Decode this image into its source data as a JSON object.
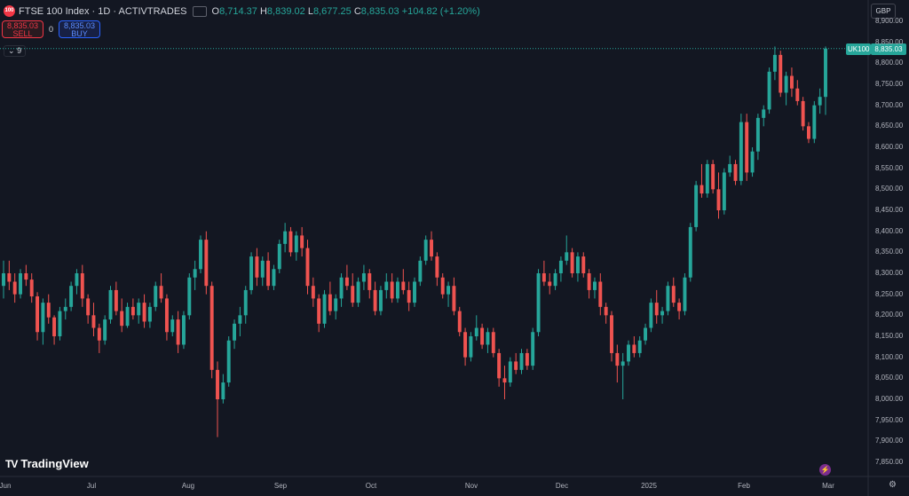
{
  "header": {
    "symbol_icon": "100",
    "title": "FTSE 100 Index · 1D · ACTIVTRADES",
    "ohlc": {
      "o_label": "O",
      "o": "8,714.37",
      "h_label": "H",
      "h": "8,839.02",
      "l_label": "L",
      "l": "8,677.25",
      "c_label": "C",
      "c": "8,835.03",
      "change": "+104.82 (+1.20%)"
    }
  },
  "trade": {
    "sell_price": "8,835.03",
    "sell_label": "SELL",
    "spread": "0",
    "buy_price": "8,835.03",
    "buy_label": "BUY"
  },
  "indicators_toggle": "9",
  "currency": "GBP",
  "symbol_tag": "UK100",
  "last_price": "8,835.03",
  "brand": "TradingView",
  "colors": {
    "up": "#26a69a",
    "down": "#ef5350",
    "bg": "#131722"
  },
  "chart_data": {
    "type": "candlestick",
    "title": "FTSE 100 Index · 1D · ACTIVTRADES",
    "ylim": [
      7825,
      8925
    ],
    "y_ticks": [
      "7,850.00",
      "7,900.00",
      "7,950.00",
      "8,000.00",
      "8,050.00",
      "8,100.00",
      "8,150.00",
      "8,200.00",
      "8,250.00",
      "8,300.00",
      "8,350.00",
      "8,400.00",
      "8,450.00",
      "8,500.00",
      "8,550.00",
      "8,600.00",
      "8,650.00",
      "8,700.00",
      "8,750.00",
      "8,800.00",
      "8,850.00",
      "8,900.00"
    ],
    "x_ticks": [
      "Jun",
      "Jul",
      "Aug",
      "Sep",
      "Oct",
      "Nov",
      "Dec",
      "2025",
      "Feb",
      "Mar"
    ],
    "candles": [
      [
        8270,
        8330,
        8240,
        8300
      ],
      [
        8300,
        8330,
        8260,
        8280
      ],
      [
        8280,
        8300,
        8230,
        8250
      ],
      [
        8250,
        8310,
        8240,
        8300
      ],
      [
        8300,
        8320,
        8270,
        8285
      ],
      [
        8285,
        8300,
        8230,
        8245
      ],
      [
        8245,
        8255,
        8140,
        8160
      ],
      [
        8160,
        8240,
        8130,
        8230
      ],
      [
        8230,
        8250,
        8180,
        8195
      ],
      [
        8195,
        8200,
        8130,
        8150
      ],
      [
        8150,
        8220,
        8140,
        8210
      ],
      [
        8210,
        8240,
        8190,
        8220
      ],
      [
        8220,
        8280,
        8210,
        8270
      ],
      [
        8270,
        8310,
        8250,
        8300
      ],
      [
        8300,
        8320,
        8220,
        8240
      ],
      [
        8240,
        8250,
        8180,
        8200
      ],
      [
        8200,
        8230,
        8150,
        8170
      ],
      [
        8170,
        8180,
        8110,
        8140
      ],
      [
        8140,
        8200,
        8130,
        8190
      ],
      [
        8190,
        8270,
        8180,
        8260
      ],
      [
        8260,
        8280,
        8200,
        8210
      ],
      [
        8210,
        8240,
        8160,
        8175
      ],
      [
        8175,
        8230,
        8170,
        8220
      ],
      [
        8220,
        8240,
        8190,
        8200
      ],
      [
        8200,
        8240,
        8180,
        8230
      ],
      [
        8230,
        8250,
        8170,
        8185
      ],
      [
        8185,
        8230,
        8170,
        8220
      ],
      [
        8220,
        8280,
        8210,
        8270
      ],
      [
        8270,
        8300,
        8230,
        8240
      ],
      [
        8240,
        8250,
        8140,
        8160
      ],
      [
        8160,
        8200,
        8150,
        8190
      ],
      [
        8190,
        8210,
        8110,
        8130
      ],
      [
        8130,
        8210,
        8120,
        8200
      ],
      [
        8200,
        8300,
        8190,
        8290
      ],
      [
        8290,
        8330,
        8260,
        8310
      ],
      [
        8310,
        8390,
        8300,
        8380
      ],
      [
        8380,
        8400,
        8250,
        8270
      ],
      [
        8270,
        8280,
        8050,
        8070
      ],
      [
        8070,
        8090,
        7910,
        8000
      ],
      [
        8000,
        8060,
        7990,
        8040
      ],
      [
        8040,
        8150,
        8030,
        8140
      ],
      [
        8140,
        8190,
        8120,
        8180
      ],
      [
        8180,
        8220,
        8150,
        8200
      ],
      [
        8200,
        8270,
        8180,
        8260
      ],
      [
        8260,
        8350,
        8250,
        8340
      ],
      [
        8340,
        8360,
        8270,
        8290
      ],
      [
        8290,
        8340,
        8270,
        8330
      ],
      [
        8330,
        8350,
        8260,
        8270
      ],
      [
        8270,
        8320,
        8260,
        8310
      ],
      [
        8310,
        8380,
        8300,
        8370
      ],
      [
        8370,
        8420,
        8350,
        8400
      ],
      [
        8400,
        8410,
        8340,
        8350
      ],
      [
        8350,
        8400,
        8330,
        8390
      ],
      [
        8390,
        8410,
        8340,
        8360
      ],
      [
        8360,
        8380,
        8250,
        8270
      ],
      [
        8270,
        8290,
        8220,
        8240
      ],
      [
        8240,
        8250,
        8160,
        8180
      ],
      [
        8180,
        8260,
        8170,
        8250
      ],
      [
        8250,
        8280,
        8200,
        8210
      ],
      [
        8210,
        8250,
        8190,
        8240
      ],
      [
        8240,
        8300,
        8220,
        8290
      ],
      [
        8290,
        8320,
        8260,
        8270
      ],
      [
        8270,
        8300,
        8220,
        8230
      ],
      [
        8230,
        8290,
        8220,
        8280
      ],
      [
        8280,
        8320,
        8260,
        8300
      ],
      [
        8300,
        8310,
        8240,
        8260
      ],
      [
        8260,
        8280,
        8200,
        8210
      ],
      [
        8210,
        8270,
        8200,
        8260
      ],
      [
        8260,
        8300,
        8240,
        8280
      ],
      [
        8280,
        8300,
        8230,
        8240
      ],
      [
        8240,
        8290,
        8230,
        8280
      ],
      [
        8280,
        8310,
        8250,
        8260
      ],
      [
        8260,
        8280,
        8210,
        8230
      ],
      [
        8230,
        8290,
        8220,
        8280
      ],
      [
        8280,
        8340,
        8270,
        8330
      ],
      [
        8330,
        8390,
        8320,
        8380
      ],
      [
        8380,
        8400,
        8330,
        8340
      ],
      [
        8340,
        8350,
        8270,
        8290
      ],
      [
        8290,
        8300,
        8240,
        8250
      ],
      [
        8250,
        8280,
        8220,
        8270
      ],
      [
        8270,
        8290,
        8200,
        8210
      ],
      [
        8210,
        8220,
        8150,
        8160
      ],
      [
        8160,
        8170,
        8080,
        8100
      ],
      [
        8100,
        8160,
        8090,
        8150
      ],
      [
        8150,
        8200,
        8140,
        8170
      ],
      [
        8170,
        8180,
        8120,
        8130
      ],
      [
        8130,
        8170,
        8110,
        8160
      ],
      [
        8160,
        8170,
        8100,
        8110
      ],
      [
        8110,
        8120,
        8030,
        8050
      ],
      [
        8050,
        8080,
        8000,
        8040
      ],
      [
        8040,
        8100,
        8030,
        8090
      ],
      [
        8090,
        8110,
        8060,
        8070
      ],
      [
        8070,
        8120,
        8060,
        8110
      ],
      [
        8110,
        8120,
        8070,
        8080
      ],
      [
        8080,
        8170,
        8070,
        8160
      ],
      [
        8160,
        8310,
        8150,
        8300
      ],
      [
        8300,
        8330,
        8270,
        8280
      ],
      [
        8280,
        8300,
        8250,
        8270
      ],
      [
        8270,
        8310,
        8260,
        8300
      ],
      [
        8300,
        8340,
        8280,
        8330
      ],
      [
        8330,
        8390,
        8320,
        8350
      ],
      [
        8350,
        8360,
        8290,
        8300
      ],
      [
        8300,
        8350,
        8280,
        8340
      ],
      [
        8340,
        8350,
        8290,
        8300
      ],
      [
        8300,
        8310,
        8240,
        8260
      ],
      [
        8260,
        8290,
        8240,
        8280
      ],
      [
        8280,
        8300,
        8200,
        8220
      ],
      [
        8220,
        8230,
        8180,
        8200
      ],
      [
        8200,
        8210,
        8090,
        8110
      ],
      [
        8110,
        8130,
        8040,
        8080
      ],
      [
        8080,
        8110,
        8000,
        8090
      ],
      [
        8090,
        8140,
        8080,
        8130
      ],
      [
        8130,
        8150,
        8100,
        8110
      ],
      [
        8110,
        8150,
        8100,
        8140
      ],
      [
        8140,
        8180,
        8130,
        8170
      ],
      [
        8170,
        8240,
        8160,
        8230
      ],
      [
        8230,
        8260,
        8180,
        8200
      ],
      [
        8200,
        8220,
        8180,
        8210
      ],
      [
        8210,
        8280,
        8200,
        8270
      ],
      [
        8270,
        8290,
        8220,
        8230
      ],
      [
        8230,
        8240,
        8190,
        8210
      ],
      [
        8210,
        8300,
        8200,
        8290
      ],
      [
        8290,
        8420,
        8280,
        8410
      ],
      [
        8410,
        8520,
        8400,
        8510
      ],
      [
        8510,
        8560,
        8480,
        8490
      ],
      [
        8490,
        8570,
        8480,
        8560
      ],
      [
        8560,
        8570,
        8490,
        8500
      ],
      [
        8500,
        8540,
        8430,
        8450
      ],
      [
        8450,
        8550,
        8440,
        8540
      ],
      [
        8540,
        8580,
        8530,
        8560
      ],
      [
        8560,
        8570,
        8510,
        8520
      ],
      [
        8520,
        8680,
        8510,
        8660
      ],
      [
        8660,
        8680,
        8520,
        8540
      ],
      [
        8540,
        8600,
        8530,
        8590
      ],
      [
        8590,
        8680,
        8570,
        8670
      ],
      [
        8670,
        8700,
        8650,
        8690
      ],
      [
        8690,
        8790,
        8680,
        8780
      ],
      [
        8780,
        8840,
        8760,
        8820
      ],
      [
        8820,
        8830,
        8720,
        8730
      ],
      [
        8730,
        8780,
        8700,
        8770
      ],
      [
        8770,
        8790,
        8720,
        8740
      ],
      [
        8740,
        8760,
        8700,
        8710
      ],
      [
        8710,
        8720,
        8640,
        8650
      ],
      [
        8650,
        8660,
        8610,
        8620
      ],
      [
        8620,
        8710,
        8610,
        8700
      ],
      [
        8700,
        8740,
        8680,
        8720
      ],
      [
        8720,
        8840,
        8677,
        8835
      ]
    ]
  }
}
